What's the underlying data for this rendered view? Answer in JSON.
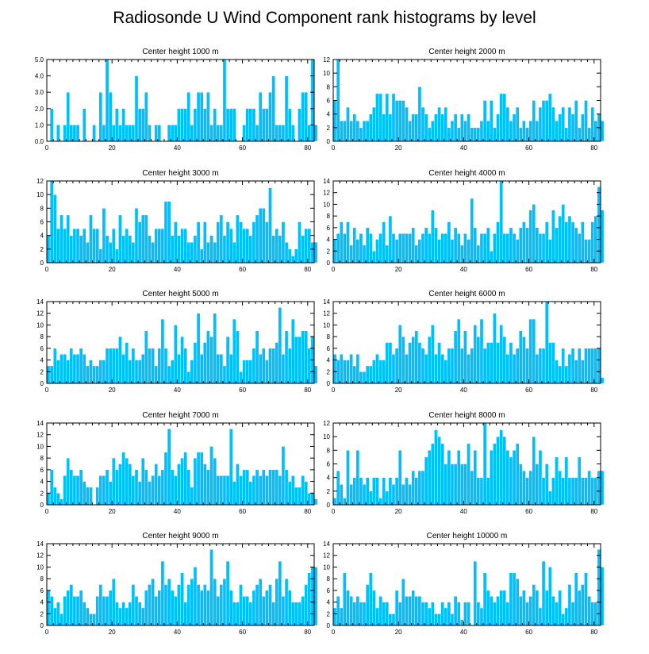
{
  "title": "Radiosonde U Wind Component rank histograms by level",
  "bar_color": "#00bfff",
  "chart_data": [
    {
      "type": "bar",
      "title": "Center height 1000 m",
      "xlabel": "",
      "ylabel": "",
      "xlim": [
        0,
        82
      ],
      "ylim": [
        0,
        5
      ],
      "yticks": [
        "0.0",
        "1.0",
        "2.0",
        "3.0",
        "4.0",
        "5.0"
      ],
      "ytick_values": [
        0,
        1,
        2,
        3,
        4,
        5
      ],
      "xticks": [
        "0",
        "20",
        "40",
        "60",
        "80"
      ],
      "xtick_values": [
        0,
        20,
        40,
        60,
        80
      ],
      "values": [
        0,
        2,
        0,
        1,
        0,
        1,
        3,
        1,
        1,
        1,
        0,
        2,
        0,
        0,
        1,
        0,
        3,
        1,
        5,
        3,
        1,
        2,
        1,
        2,
        1,
        1,
        1,
        4,
        2,
        2,
        3,
        1,
        0,
        1,
        1,
        0,
        0,
        1,
        1,
        1,
        2,
        2,
        2,
        3,
        1,
        2,
        3,
        3,
        2,
        3,
        1,
        2,
        1,
        1,
        5,
        2,
        2,
        2,
        0,
        0,
        1,
        2,
        2,
        2,
        1,
        3,
        2,
        2,
        3,
        4,
        1,
        1,
        1,
        4,
        2,
        1,
        0,
        2,
        3,
        3,
        1,
        5,
        1
      ]
    },
    {
      "type": "bar",
      "title": "Center height 2000 m",
      "xlabel": "",
      "ylabel": "",
      "xlim": [
        0,
        82
      ],
      "ylim": [
        0,
        12
      ],
      "yticks": [
        "0",
        "2",
        "4",
        "6",
        "8",
        "10",
        "12"
      ],
      "ytick_values": [
        0,
        2,
        4,
        6,
        8,
        10,
        12
      ],
      "xticks": [
        "0",
        "20",
        "40",
        "60",
        "80"
      ],
      "xtick_values": [
        0,
        20,
        40,
        60,
        80
      ],
      "values": [
        6,
        12,
        3,
        3,
        5,
        3,
        4,
        3,
        2,
        3,
        3,
        4,
        5,
        7,
        7,
        4,
        7,
        4,
        7,
        6,
        6,
        6,
        5,
        3,
        4,
        4,
        8,
        5,
        4,
        2,
        3,
        4,
        5,
        4,
        5,
        2,
        3,
        4,
        2,
        4,
        3,
        4,
        2,
        2,
        2,
        3,
        6,
        3,
        6,
        2,
        4,
        7,
        7,
        5,
        3,
        4,
        5,
        2,
        3,
        2,
        3,
        6,
        3,
        5,
        6,
        6,
        7,
        5,
        3,
        4,
        5,
        2,
        5,
        4,
        6,
        2,
        4,
        6,
        2,
        5,
        3,
        4,
        3
      ]
    },
    {
      "type": "bar",
      "title": "Center height 3000 m",
      "xlabel": "",
      "ylabel": "",
      "xlim": [
        0,
        82
      ],
      "ylim": [
        0,
        12
      ],
      "yticks": [
        "0",
        "2",
        "4",
        "6",
        "8",
        "10",
        "12"
      ],
      "ytick_values": [
        0,
        2,
        4,
        6,
        8,
        10,
        12
      ],
      "xticks": [
        "0",
        "20",
        "40",
        "60",
        "80"
      ],
      "xtick_values": [
        0,
        20,
        40,
        60,
        80
      ],
      "values": [
        4,
        12,
        10,
        5,
        7,
        5,
        7,
        4,
        5,
        5,
        4,
        5,
        3,
        7,
        5,
        5,
        2,
        8,
        4,
        3,
        5,
        2,
        7,
        4,
        5,
        4,
        3,
        8,
        6,
        7,
        7,
        4,
        3,
        5,
        5,
        5,
        9,
        9,
        4,
        6,
        4,
        5,
        5,
        3,
        3,
        4,
        6,
        2,
        6,
        3,
        4,
        3,
        6,
        7,
        4,
        6,
        5,
        3,
        7,
        6,
        5,
        5,
        4,
        6,
        7,
        8,
        8,
        6,
        11,
        4,
        5,
        4,
        6,
        3,
        2,
        1,
        2,
        6,
        4,
        5,
        5,
        3,
        3
      ]
    },
    {
      "type": "bar",
      "title": "Center height 4000 m",
      "xlabel": "",
      "ylabel": "",
      "xlim": [
        0,
        82
      ],
      "ylim": [
        0,
        14
      ],
      "yticks": [
        "0",
        "2",
        "4",
        "6",
        "8",
        "10",
        "12",
        "14"
      ],
      "ytick_values": [
        0,
        2,
        4,
        6,
        8,
        10,
        12,
        14
      ],
      "xticks": [
        "0",
        "20",
        "40",
        "60",
        "80"
      ],
      "xtick_values": [
        0,
        20,
        40,
        60,
        80
      ],
      "values": [
        4,
        5,
        7,
        5,
        7,
        3,
        6,
        4,
        5,
        3,
        6,
        5,
        2,
        4,
        5,
        7,
        3,
        8,
        5,
        4,
        5,
        5,
        5,
        5,
        6,
        3,
        4,
        5,
        6,
        5,
        9,
        6,
        4,
        5,
        5,
        7,
        4,
        6,
        5,
        3,
        5,
        4,
        11,
        6,
        3,
        5,
        5,
        6,
        2,
        5,
        7,
        14,
        5,
        5,
        6,
        5,
        4,
        6,
        7,
        6,
        9,
        10,
        6,
        5,
        5,
        7,
        4,
        9,
        6,
        8,
        10,
        7,
        8,
        7,
        6,
        5,
        7,
        4,
        4,
        7,
        8,
        13,
        9
      ]
    },
    {
      "type": "bar",
      "title": "Center height 5000 m",
      "xlabel": "",
      "ylabel": "",
      "xlim": [
        0,
        82
      ],
      "ylim": [
        0,
        14
      ],
      "yticks": [
        "0",
        "2",
        "4",
        "6",
        "8",
        "10",
        "12",
        "14"
      ],
      "ytick_values": [
        0,
        2,
        4,
        6,
        8,
        10,
        12,
        14
      ],
      "xticks": [
        "0",
        "20",
        "40",
        "60",
        "80"
      ],
      "xtick_values": [
        0,
        20,
        40,
        60,
        80
      ],
      "values": [
        3,
        3,
        6,
        4,
        5,
        5,
        4,
        6,
        5,
        5,
        6,
        5,
        3,
        4,
        3,
        3,
        4,
        4,
        6,
        6,
        6,
        6,
        8,
        5,
        7,
        4,
        6,
        4,
        4,
        5,
        9,
        6,
        6,
        3,
        6,
        11,
        6,
        3,
        4,
        10,
        5,
        8,
        6,
        2,
        4,
        7,
        12,
        5,
        7,
        9,
        8,
        12,
        5,
        5,
        3,
        8,
        5,
        11,
        9,
        2,
        4,
        4,
        4,
        6,
        9,
        5,
        6,
        4,
        6,
        6,
        7,
        13,
        5,
        9,
        6,
        11,
        8,
        8,
        9,
        9,
        6,
        8,
        3
      ]
    },
    {
      "type": "bar",
      "title": "Center height 6000 m",
      "xlabel": "",
      "ylabel": "",
      "xlim": [
        0,
        82
      ],
      "ylim": [
        0,
        14
      ],
      "yticks": [
        "0",
        "2",
        "4",
        "6",
        "8",
        "10",
        "12",
        "14"
      ],
      "ytick_values": [
        0,
        2,
        4,
        6,
        8,
        10,
        12,
        14
      ],
      "xticks": [
        "0",
        "20",
        "40",
        "60",
        "80"
      ],
      "xtick_values": [
        0,
        20,
        40,
        60,
        80
      ],
      "values": [
        5,
        4,
        5,
        4,
        4,
        5,
        3,
        5,
        2,
        2,
        3,
        3,
        4,
        5,
        4,
        4,
        7,
        7,
        5,
        6,
        10,
        8,
        5,
        7,
        8,
        9,
        7,
        6,
        5,
        8,
        10,
        5,
        7,
        5,
        4,
        6,
        6,
        9,
        11,
        6,
        9,
        5,
        6,
        10,
        8,
        11,
        6,
        7,
        7,
        12,
        7,
        10,
        8,
        5,
        7,
        5,
        6,
        9,
        8,
        6,
        11,
        11,
        5,
        6,
        6,
        14,
        7,
        7,
        4,
        3,
        6,
        3,
        5,
        6,
        4,
        6,
        4,
        6,
        6,
        6,
        6,
        6,
        1
      ]
    },
    {
      "type": "bar",
      "title": "Center height 7000 m",
      "xlabel": "",
      "ylabel": "",
      "xlim": [
        0,
        82
      ],
      "ylim": [
        0,
        14
      ],
      "yticks": [
        "0",
        "2",
        "4",
        "6",
        "8",
        "10",
        "12",
        "14"
      ],
      "ytick_values": [
        0,
        2,
        4,
        6,
        8,
        10,
        12,
        14
      ],
      "xticks": [
        "0",
        "20",
        "40",
        "60",
        "80"
      ],
      "xtick_values": [
        0,
        20,
        40,
        60,
        80
      ],
      "values": [
        2,
        6,
        3,
        2,
        1,
        5,
        8,
        6,
        5,
        5,
        6,
        4,
        3,
        3,
        0,
        3,
        5,
        5,
        6,
        4,
        8,
        6,
        7,
        9,
        8,
        7,
        5,
        6,
        4,
        8,
        6,
        4,
        5,
        7,
        5,
        6,
        9,
        13,
        6,
        5,
        7,
        8,
        9,
        6,
        3,
        8,
        9,
        9,
        7,
        6,
        10,
        8,
        5,
        5,
        5,
        5,
        13,
        4,
        7,
        5,
        6,
        6,
        4,
        5,
        6,
        5,
        6,
        5,
        6,
        6,
        6,
        5,
        10,
        6,
        4,
        5,
        3,
        3,
        5,
        4,
        2,
        2,
        1
      ]
    },
    {
      "type": "bar",
      "title": "Center height 8000 m",
      "xlabel": "",
      "ylabel": "",
      "xlim": [
        0,
        82
      ],
      "ylim": [
        0,
        12
      ],
      "yticks": [
        "0",
        "2",
        "4",
        "6",
        "8",
        "10",
        "12"
      ],
      "ytick_values": [
        0,
        2,
        4,
        6,
        8,
        10,
        12
      ],
      "xticks": [
        "0",
        "20",
        "40",
        "60",
        "80"
      ],
      "xtick_values": [
        0,
        20,
        40,
        60,
        80
      ],
      "values": [
        1,
        5,
        3,
        1,
        8,
        3,
        4,
        8,
        4,
        3,
        4,
        2,
        4,
        4,
        1,
        4,
        2,
        4,
        3,
        4,
        8,
        3,
        4,
        3,
        5,
        4,
        5,
        5,
        7,
        8,
        9,
        11,
        10,
        9,
        6,
        8,
        6,
        6,
        8,
        6,
        6,
        9,
        5,
        8,
        4,
        4,
        12,
        4,
        8,
        9,
        10,
        11,
        10,
        8,
        7,
        8,
        9,
        6,
        5,
        4,
        5,
        10,
        6,
        8,
        4,
        6,
        2,
        4,
        7,
        5,
        4,
        7,
        4,
        4,
        4,
        7,
        4,
        4,
        5,
        4,
        4,
        5,
        5
      ]
    },
    {
      "type": "bar",
      "title": "Center height 9000 m",
      "xlabel": "",
      "ylabel": "",
      "xlim": [
        0,
        82
      ],
      "ylim": [
        0,
        14
      ],
      "yticks": [
        "0",
        "2",
        "4",
        "6",
        "8",
        "10",
        "12",
        "14"
      ],
      "ytick_values": [
        0,
        2,
        4,
        6,
        8,
        10,
        12,
        14
      ],
      "xticks": [
        "0",
        "20",
        "40",
        "60",
        "80"
      ],
      "xtick_values": [
        0,
        20,
        40,
        60,
        80
      ],
      "values": [
        6,
        5,
        3,
        4,
        2,
        5,
        6,
        7,
        5,
        5,
        6,
        4,
        3,
        2,
        2,
        5,
        7,
        5,
        5,
        6,
        8,
        4,
        3,
        4,
        3,
        4,
        7,
        5,
        4,
        3,
        6,
        7,
        8,
        5,
        6,
        11,
        7,
        8,
        6,
        5,
        7,
        9,
        4,
        7,
        8,
        10,
        7,
        6,
        7,
        6,
        13,
        8,
        5,
        7,
        8,
        11,
        6,
        4,
        4,
        7,
        5,
        5,
        4,
        6,
        7,
        8,
        5,
        6,
        7,
        4,
        8,
        11,
        5,
        8,
        6,
        4,
        4,
        4,
        5,
        7,
        9,
        10,
        10
      ]
    },
    {
      "type": "bar",
      "title": "Center height 10000 m",
      "xlabel": "",
      "ylabel": "",
      "xlim": [
        0,
        82
      ],
      "ylim": [
        0,
        14
      ],
      "yticks": [
        "0",
        "2",
        "4",
        "6",
        "8",
        "10",
        "12",
        "14"
      ],
      "ytick_values": [
        0,
        2,
        4,
        6,
        8,
        10,
        12,
        14
      ],
      "xticks": [
        "0",
        "20",
        "40",
        "60",
        "80"
      ],
      "xtick_values": [
        0,
        20,
        40,
        60,
        80
      ],
      "values": [
        3,
        5,
        3,
        9,
        6,
        5,
        4,
        5,
        4,
        4,
        7,
        9,
        6,
        3,
        5,
        4,
        4,
        2,
        2,
        6,
        4,
        8,
        5,
        5,
        6,
        5,
        5,
        4,
        4,
        3,
        4,
        2,
        2,
        4,
        3,
        4,
        2,
        5,
        4,
        1,
        4,
        4,
        0,
        11,
        4,
        3,
        9,
        6,
        5,
        4,
        5,
        6,
        6,
        4,
        9,
        9,
        8,
        5,
        6,
        4,
        5,
        7,
        6,
        3,
        11,
        6,
        10,
        5,
        4,
        6,
        2,
        3,
        7,
        4,
        9,
        6,
        7,
        9,
        5,
        4,
        4,
        13,
        10
      ]
    }
  ]
}
